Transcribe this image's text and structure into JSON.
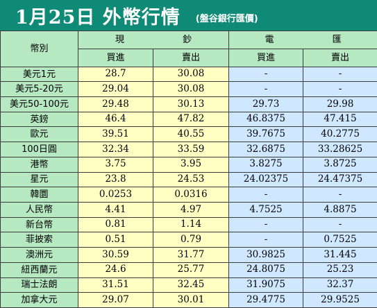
{
  "title": "1月25日 外幣行情",
  "subtitle": "(盤谷銀行匯價)",
  "header": {
    "currency_label": "幣別",
    "cash_label": "現 鈔",
    "wire_label": "電 匯",
    "buy_label": "買進",
    "sell_label": "賣出"
  },
  "rows": [
    {
      "name": "美元1元",
      "cash_buy": "28.7",
      "cash_sell": "30.08",
      "wire_buy": "-",
      "wire_sell": "-"
    },
    {
      "name": "美元5-20元",
      "cash_buy": "29.04",
      "cash_sell": "30.08",
      "wire_buy": "-",
      "wire_sell": "-"
    },
    {
      "name": "美元50-100元",
      "cash_buy": "29.48",
      "cash_sell": "30.13",
      "wire_buy": "29.73",
      "wire_sell": "29.98"
    },
    {
      "name": "英鎊",
      "cash_buy": "46.4",
      "cash_sell": "47.82",
      "wire_buy": "46.8375",
      "wire_sell": "47.415"
    },
    {
      "name": "歐元",
      "cash_buy": "39.51",
      "cash_sell": "40.55",
      "wire_buy": "39.7675",
      "wire_sell": "40.2775"
    },
    {
      "name": "100日圓",
      "cash_buy": "32.34",
      "cash_sell": "33.59",
      "wire_buy": "32.6875",
      "wire_sell": "33.28625"
    },
    {
      "name": "港幣",
      "cash_buy": "3.75",
      "cash_sell": "3.95",
      "wire_buy": "3.8275",
      "wire_sell": "3.8725"
    },
    {
      "name": "星元",
      "cash_buy": "23.8",
      "cash_sell": "24.53",
      "wire_buy": "24.02375",
      "wire_sell": "24.47375"
    },
    {
      "name": "韓圜",
      "cash_buy": "0.0253",
      "cash_sell": "0.0316",
      "wire_buy": "-",
      "wire_sell": "-"
    },
    {
      "name": "人民幣",
      "cash_buy": "4.41",
      "cash_sell": "4.97",
      "wire_buy": "4.7525",
      "wire_sell": "4.8875"
    },
    {
      "name": "新台幣",
      "cash_buy": "0.81",
      "cash_sell": "1.14",
      "wire_buy": "-",
      "wire_sell": "-"
    },
    {
      "name": "菲披索",
      "cash_buy": "0.51",
      "cash_sell": "0.79",
      "wire_buy": "-",
      "wire_sell": "0.7525"
    },
    {
      "name": "澳洲元",
      "cash_buy": "30.59",
      "cash_sell": "31.77",
      "wire_buy": "30.9825",
      "wire_sell": "31.445"
    },
    {
      "name": "紐西蘭元",
      "cash_buy": "24.6",
      "cash_sell": "25.77",
      "wire_buy": "24.8075",
      "wire_sell": "25.23"
    },
    {
      "name": "瑞士法朗",
      "cash_buy": "31.51",
      "cash_sell": "32.45",
      "wire_buy": "31.9075",
      "wire_sell": "32.37"
    },
    {
      "name": "加拿大元",
      "cash_buy": "29.07",
      "cash_sell": "30.01",
      "wire_buy": "29.4775",
      "wire_sell": "29.9525"
    }
  ],
  "colors": {
    "title_bg": "#0f8a76",
    "label_bg": "#b6e8c2",
    "cash_bg": "#ffffc4",
    "wire_bg": "#cfe8ff"
  }
}
